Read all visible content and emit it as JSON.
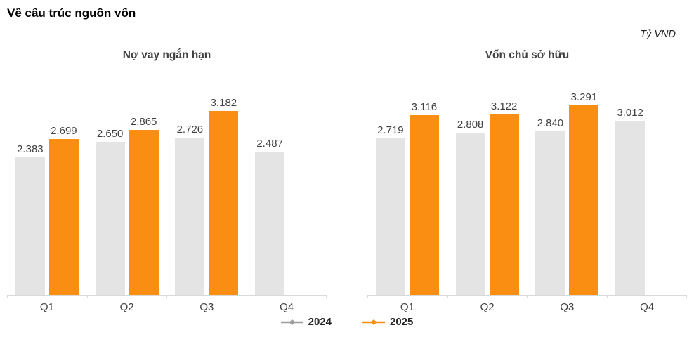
{
  "page": {
    "title": "Về cấu trúc nguồn vốn",
    "unit": "Tỷ VND"
  },
  "colors": {
    "series_2024": "#e4e4e4",
    "series_2025": "#f98e13",
    "legend_marker_2024": "#9e9e9e",
    "legend_marker_2025": "#f98e13",
    "axis": "#d9d9d9",
    "value_label": "#404040"
  },
  "legend": {
    "items": [
      {
        "label": "2024",
        "marker_color": "#9e9e9e"
      },
      {
        "label": "2025",
        "marker_color": "#f98e13"
      }
    ]
  },
  "chart_data": [
    {
      "type": "bar",
      "title": "Nợ vay ngắn hạn",
      "unit": "Tỷ VND",
      "categories": [
        "Q1",
        "Q2",
        "Q3",
        "Q4"
      ],
      "ylim": [
        0,
        3650
      ],
      "grid": false,
      "legend_position": "bottom-center",
      "series": [
        {
          "name": "2024",
          "color": "#e4e4e4",
          "values": [
            2383,
            2650,
            2726,
            2487
          ],
          "labels": [
            "2.383",
            "2.650",
            "2.726",
            "2.487"
          ]
        },
        {
          "name": "2025",
          "color": "#f98e13",
          "values": [
            2699,
            2865,
            3182,
            null
          ],
          "labels": [
            "2.699",
            "2.865",
            "3.182",
            null
          ]
        }
      ]
    },
    {
      "type": "bar",
      "title": "Vốn chủ sở hữu",
      "unit": "Tỷ VND",
      "categories": [
        "Q1",
        "Q2",
        "Q3",
        "Q4"
      ],
      "ylim": [
        0,
        3650
      ],
      "grid": false,
      "legend_position": "bottom-center",
      "series": [
        {
          "name": "2024",
          "color": "#e4e4e4",
          "values": [
            2719,
            2808,
            2840,
            3012
          ],
          "labels": [
            "2.719",
            "2.808",
            "2.840",
            "3.012"
          ]
        },
        {
          "name": "2025",
          "color": "#f98e13",
          "values": [
            3116,
            3122,
            3291,
            null
          ],
          "labels": [
            "3.116",
            "3.122",
            "3.291",
            null
          ]
        }
      ]
    }
  ]
}
